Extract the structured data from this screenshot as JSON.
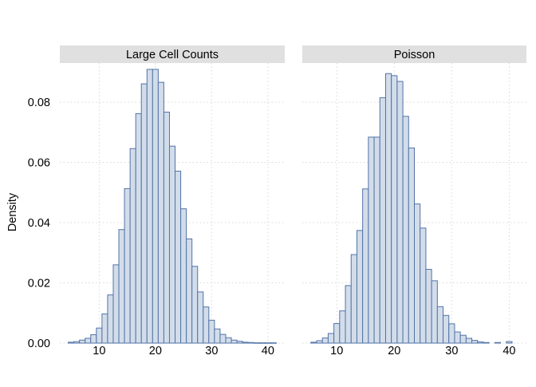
{
  "chart_data": {
    "type": "bar",
    "kind": "faceted-histogram",
    "ylabel": "Density",
    "xlabel": "",
    "ylim": [
      0,
      0.093
    ],
    "y_ticks": [
      0.0,
      0.02,
      0.04,
      0.06,
      0.08
    ],
    "y_tick_labels": [
      "0.00",
      "0.02",
      "0.04",
      "0.06",
      "0.08"
    ],
    "x_ticks": [
      10,
      20,
      30,
      40
    ],
    "x_tick_labels": [
      "10",
      "20",
      "30",
      "40"
    ],
    "grid": true,
    "bar_fill": "#d3dde9",
    "bar_stroke": "#5173a8",
    "strip_color": "#e0e0e0",
    "panels": [
      {
        "title": "Large Cell Counts",
        "xlim": [
          3,
          43
        ],
        "bin_width": 1,
        "bins": [
          {
            "x": 5,
            "y": 0.0003
          },
          {
            "x": 6,
            "y": 0.0005
          },
          {
            "x": 7,
            "y": 0.001
          },
          {
            "x": 8,
            "y": 0.0016
          },
          {
            "x": 9,
            "y": 0.0028
          },
          {
            "x": 10,
            "y": 0.005
          },
          {
            "x": 11,
            "y": 0.0097
          },
          {
            "x": 12,
            "y": 0.016
          },
          {
            "x": 13,
            "y": 0.026
          },
          {
            "x": 14,
            "y": 0.0377
          },
          {
            "x": 15,
            "y": 0.0513
          },
          {
            "x": 16,
            "y": 0.0646
          },
          {
            "x": 17,
            "y": 0.0762
          },
          {
            "x": 18,
            "y": 0.0861
          },
          {
            "x": 19,
            "y": 0.0909
          },
          {
            "x": 20,
            "y": 0.0909
          },
          {
            "x": 21,
            "y": 0.0866
          },
          {
            "x": 22,
            "y": 0.0767
          },
          {
            "x": 23,
            "y": 0.0654
          },
          {
            "x": 24,
            "y": 0.0571
          },
          {
            "x": 25,
            "y": 0.0446
          },
          {
            "x": 26,
            "y": 0.0346
          },
          {
            "x": 27,
            "y": 0.0255
          },
          {
            "x": 28,
            "y": 0.017
          },
          {
            "x": 29,
            "y": 0.012
          },
          {
            "x": 30,
            "y": 0.0076
          },
          {
            "x": 31,
            "y": 0.0047
          },
          {
            "x": 32,
            "y": 0.0029
          },
          {
            "x": 33,
            "y": 0.0018
          },
          {
            "x": 34,
            "y": 0.001
          },
          {
            "x": 35,
            "y": 0.0006
          },
          {
            "x": 36,
            "y": 0.0003
          },
          {
            "x": 37,
            "y": 0.0002
          },
          {
            "x": 38,
            "y": 0.0001
          },
          {
            "x": 39,
            "y": 0.0001
          },
          {
            "x": 40,
            "y": 0.0001
          },
          {
            "x": 41,
            "y": 0.0001
          }
        ]
      },
      {
        "title": "Poisson",
        "xlim": [
          4,
          43
        ],
        "bin_width": 1,
        "bins": [
          {
            "x": 6,
            "y": 0.0003
          },
          {
            "x": 7,
            "y": 0.0008
          },
          {
            "x": 8,
            "y": 0.0017
          },
          {
            "x": 9,
            "y": 0.0032
          },
          {
            "x": 10,
            "y": 0.0065
          },
          {
            "x": 11,
            "y": 0.0107
          },
          {
            "x": 12,
            "y": 0.0191
          },
          {
            "x": 13,
            "y": 0.0294
          },
          {
            "x": 14,
            "y": 0.0374
          },
          {
            "x": 15,
            "y": 0.0512
          },
          {
            "x": 16,
            "y": 0.0684
          },
          {
            "x": 17,
            "y": 0.0684
          },
          {
            "x": 18,
            "y": 0.0815
          },
          {
            "x": 19,
            "y": 0.0895
          },
          {
            "x": 20,
            "y": 0.0888
          },
          {
            "x": 21,
            "y": 0.0869
          },
          {
            "x": 22,
            "y": 0.0753
          },
          {
            "x": 23,
            "y": 0.0648
          },
          {
            "x": 24,
            "y": 0.0462
          },
          {
            "x": 25,
            "y": 0.0382
          },
          {
            "x": 26,
            "y": 0.0245
          },
          {
            "x": 27,
            "y": 0.0207
          },
          {
            "x": 28,
            "y": 0.0121
          },
          {
            "x": 29,
            "y": 0.0092
          },
          {
            "x": 30,
            "y": 0.0064
          },
          {
            "x": 31,
            "y": 0.0037
          },
          {
            "x": 32,
            "y": 0.0026
          },
          {
            "x": 33,
            "y": 0.0016
          },
          {
            "x": 34,
            "y": 0.0009
          },
          {
            "x": 35,
            "y": 0.0004
          },
          {
            "x": 36,
            "y": 0.0002
          },
          {
            "x": 38,
            "y": 0.0002
          },
          {
            "x": 40,
            "y": 0.0005
          }
        ]
      }
    ]
  }
}
